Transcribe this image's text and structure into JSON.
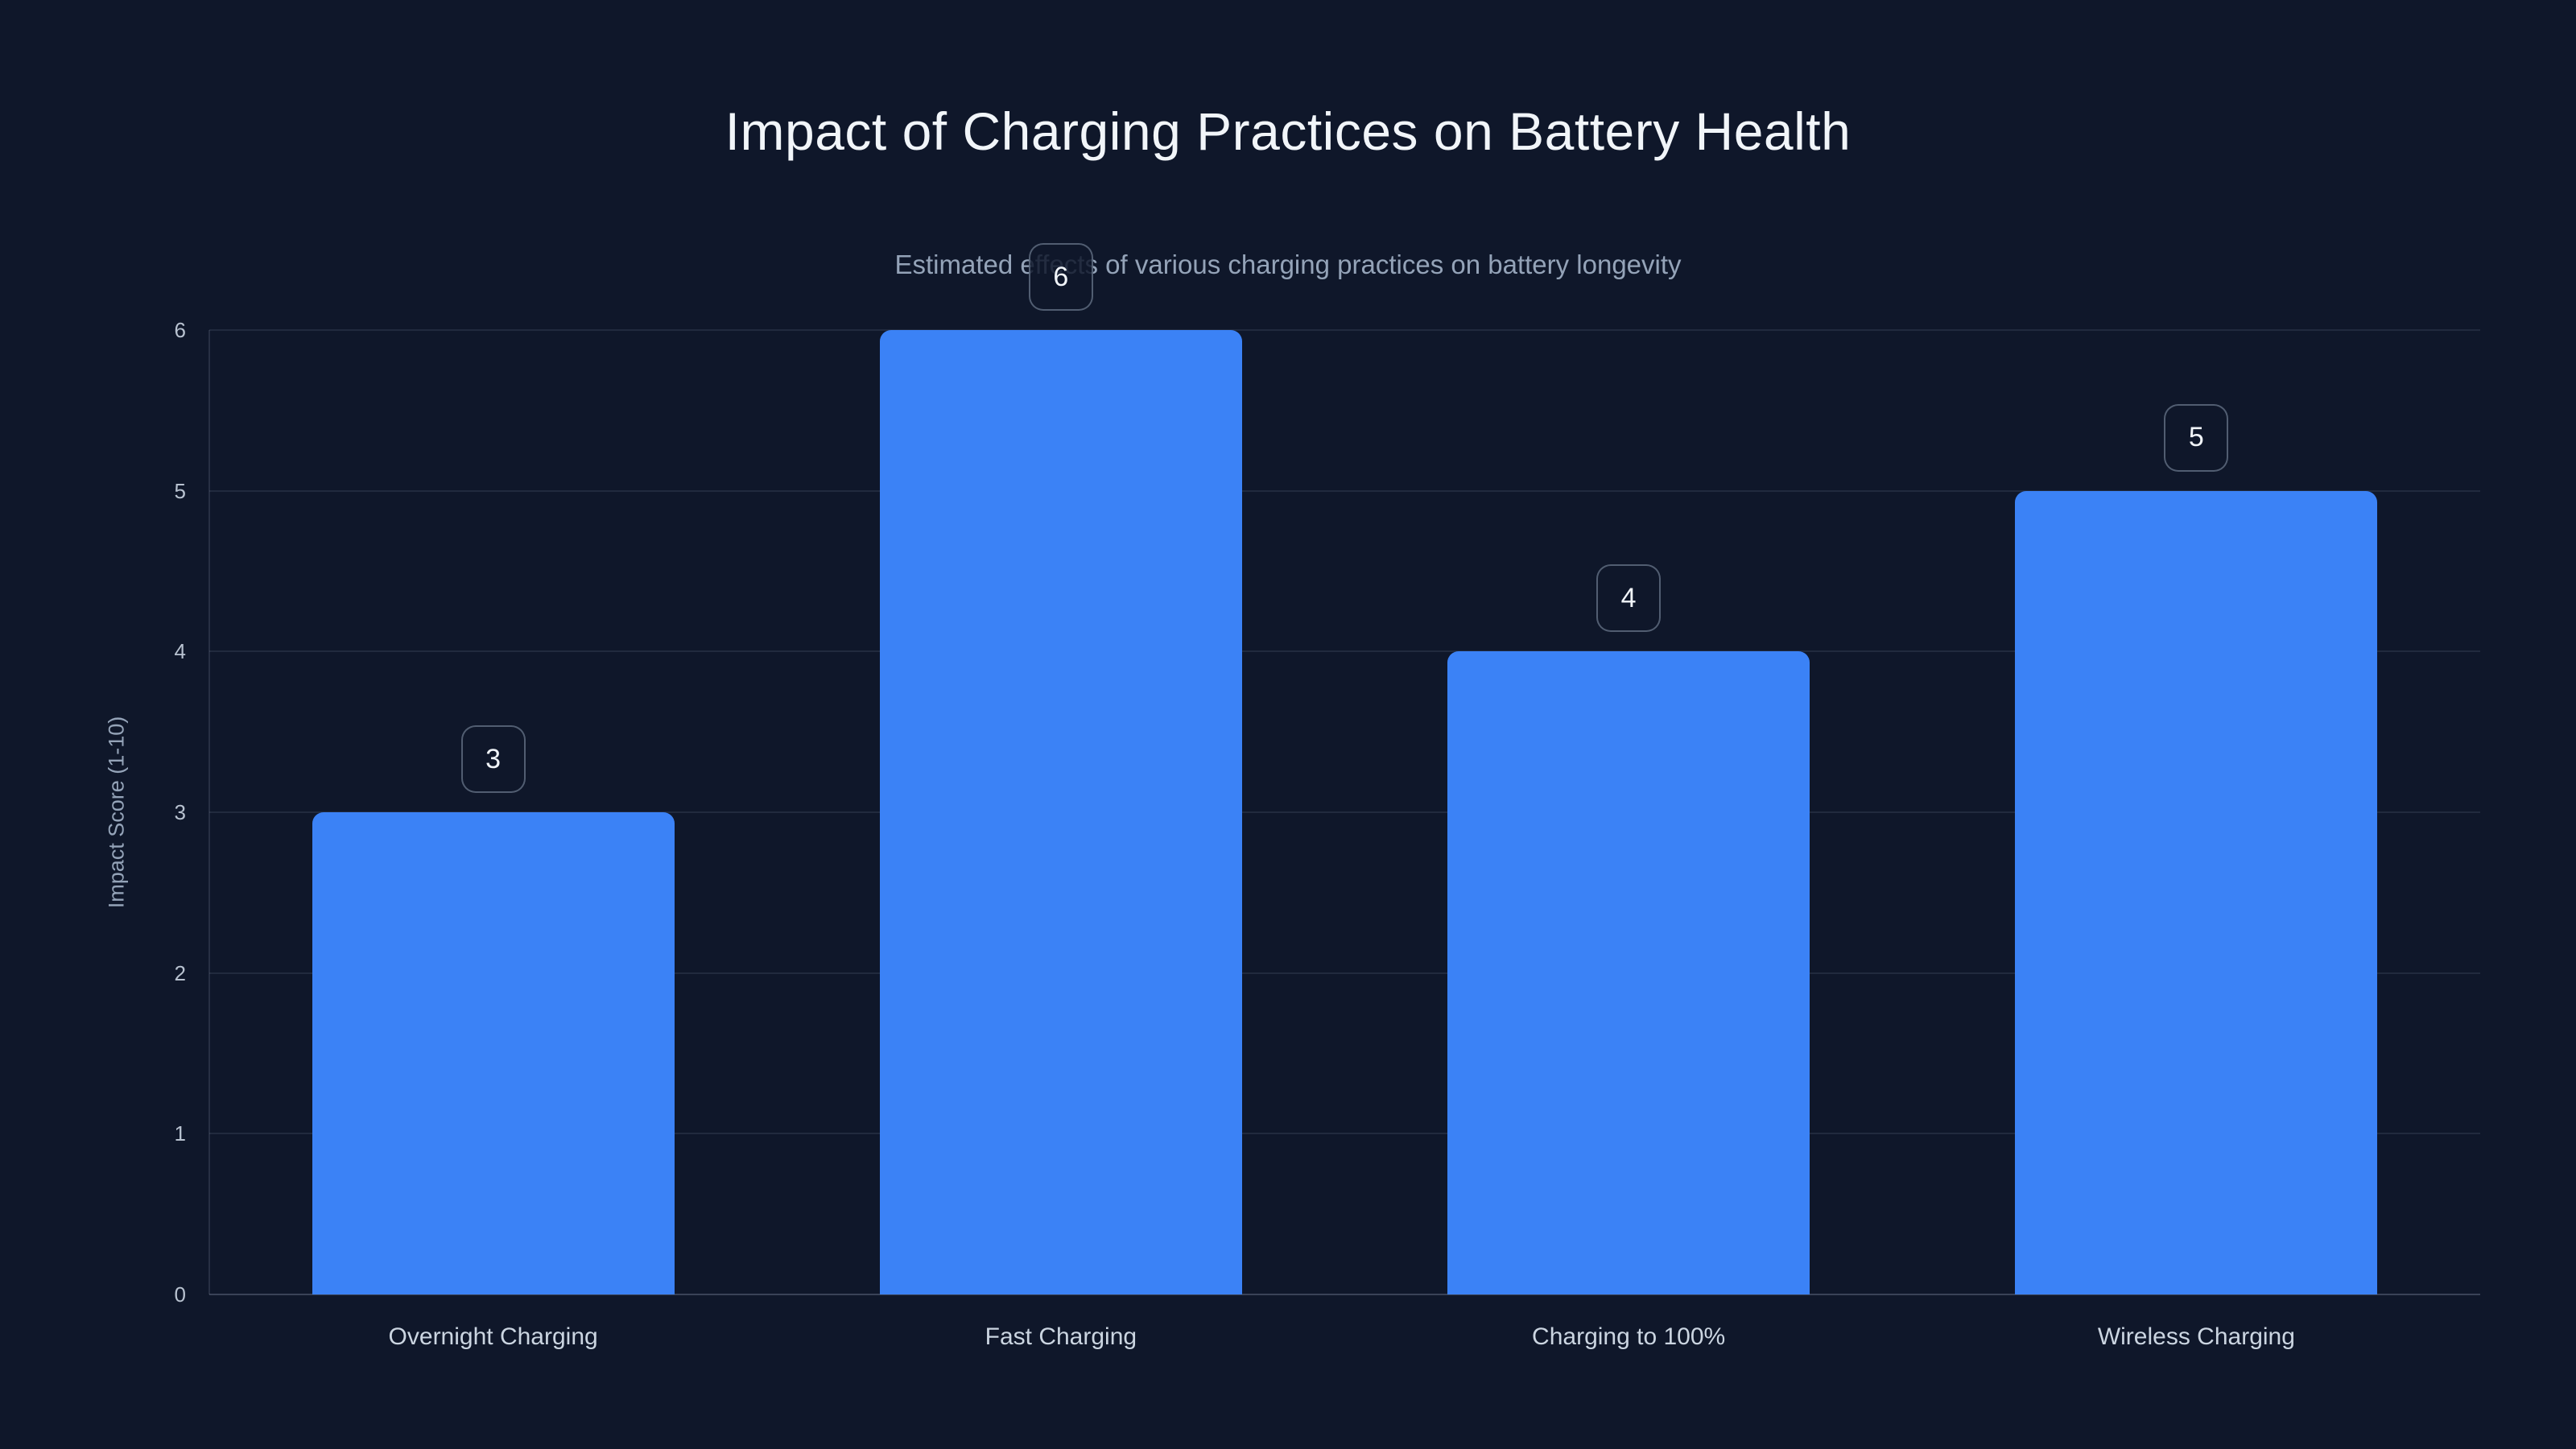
{
  "page": {
    "background": "#0f172a"
  },
  "chart_data": {
    "type": "bar",
    "title": "Impact of Charging Practices on Battery Health",
    "subtitle": "Estimated effects of various charging practices on battery longevity",
    "ylabel": "Impact Score (1-10)",
    "xlabel": "",
    "categories": [
      "Overnight Charging",
      "Fast Charging",
      "Charging to 100%",
      "Wireless Charging"
    ],
    "values": [
      3,
      6,
      4,
      5
    ],
    "value_labels": [
      "3",
      "6",
      "4",
      "5"
    ],
    "yticks": [
      0,
      1,
      2,
      3,
      4,
      5,
      6
    ],
    "ylim": [
      0,
      6
    ],
    "grid": "horizontal-only",
    "legend": "none",
    "colors": {
      "bg": "#0f172a",
      "bar": "#3b82f6",
      "title": "#f1f5f9",
      "subtitle": "#94a3b8",
      "axis_title": "#94a3b8",
      "tick": "#b8c2d0",
      "xlabel": "#cbd5e1",
      "grid": "rgba(148,163,184,0.14)",
      "baseline": "rgba(148,163,184,0.32)",
      "axis_line": "rgba(148,163,184,0.18)",
      "badge_border": "rgba(148,163,184,0.5)",
      "badge_bg": "rgba(15,23,42,0.85)",
      "badge_text": "#f1f5f9"
    }
  }
}
